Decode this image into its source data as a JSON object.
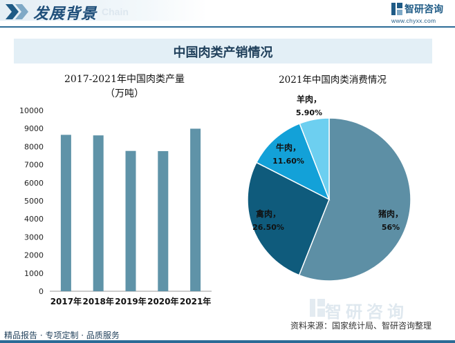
{
  "header": {
    "title": "发展背景",
    "title_en": "Chain",
    "brand_name": "智研咨询",
    "brand_url": "www.chyxx.com"
  },
  "banner": {
    "text": "中国肉类产销情况"
  },
  "bar_chart": {
    "title_line1": "2017-2021年中国肉类产量",
    "title_line2": "（万吨）"
  },
  "pie_chart": {
    "title": "2021年中国肉类消费情况"
  },
  "footer": {
    "services": "精品报告 · 专项定制 · 品质服务",
    "source": "资料来源：国家统计局、智研咨询整理",
    "watermark": "智研咨询"
  },
  "colors": {
    "bar": "#5f93a8",
    "pork": "#5d8fa5",
    "poultry": "#0f5b7c",
    "beef": "#13a1d8",
    "mutton": "#6dcff0",
    "accent": "#2b6b96"
  },
  "chart_data": [
    {
      "type": "bar",
      "title": "2017-2021年中国肉类产量",
      "subtitle": "（万吨）",
      "categories": [
        "2017年",
        "2018年",
        "2019年",
        "2020年",
        "2021年"
      ],
      "values": [
        8650,
        8620,
        7760,
        7750,
        8990
      ],
      "yticks": [
        "0",
        "1000",
        "2000",
        "3000",
        "4000",
        "5000",
        "6000",
        "7000",
        "8000",
        "9000",
        "10000"
      ],
      "ylim": [
        0,
        10000
      ],
      "grid": false
    },
    {
      "type": "pie",
      "title": "2021年中国肉类消费情况",
      "slices": [
        {
          "name": "猪肉",
          "label": "猪肉，",
          "pct_label": "56%",
          "value": 56.0
        },
        {
          "name": "禽肉",
          "label": "禽肉，",
          "pct_label": "26.50%",
          "value": 26.5
        },
        {
          "name": "牛肉",
          "label": "牛肉，",
          "pct_label": "11.60%",
          "value": 11.6
        },
        {
          "name": "羊肉",
          "label": "羊肉，",
          "pct_label": "5.90%",
          "value": 5.9
        }
      ]
    }
  ]
}
